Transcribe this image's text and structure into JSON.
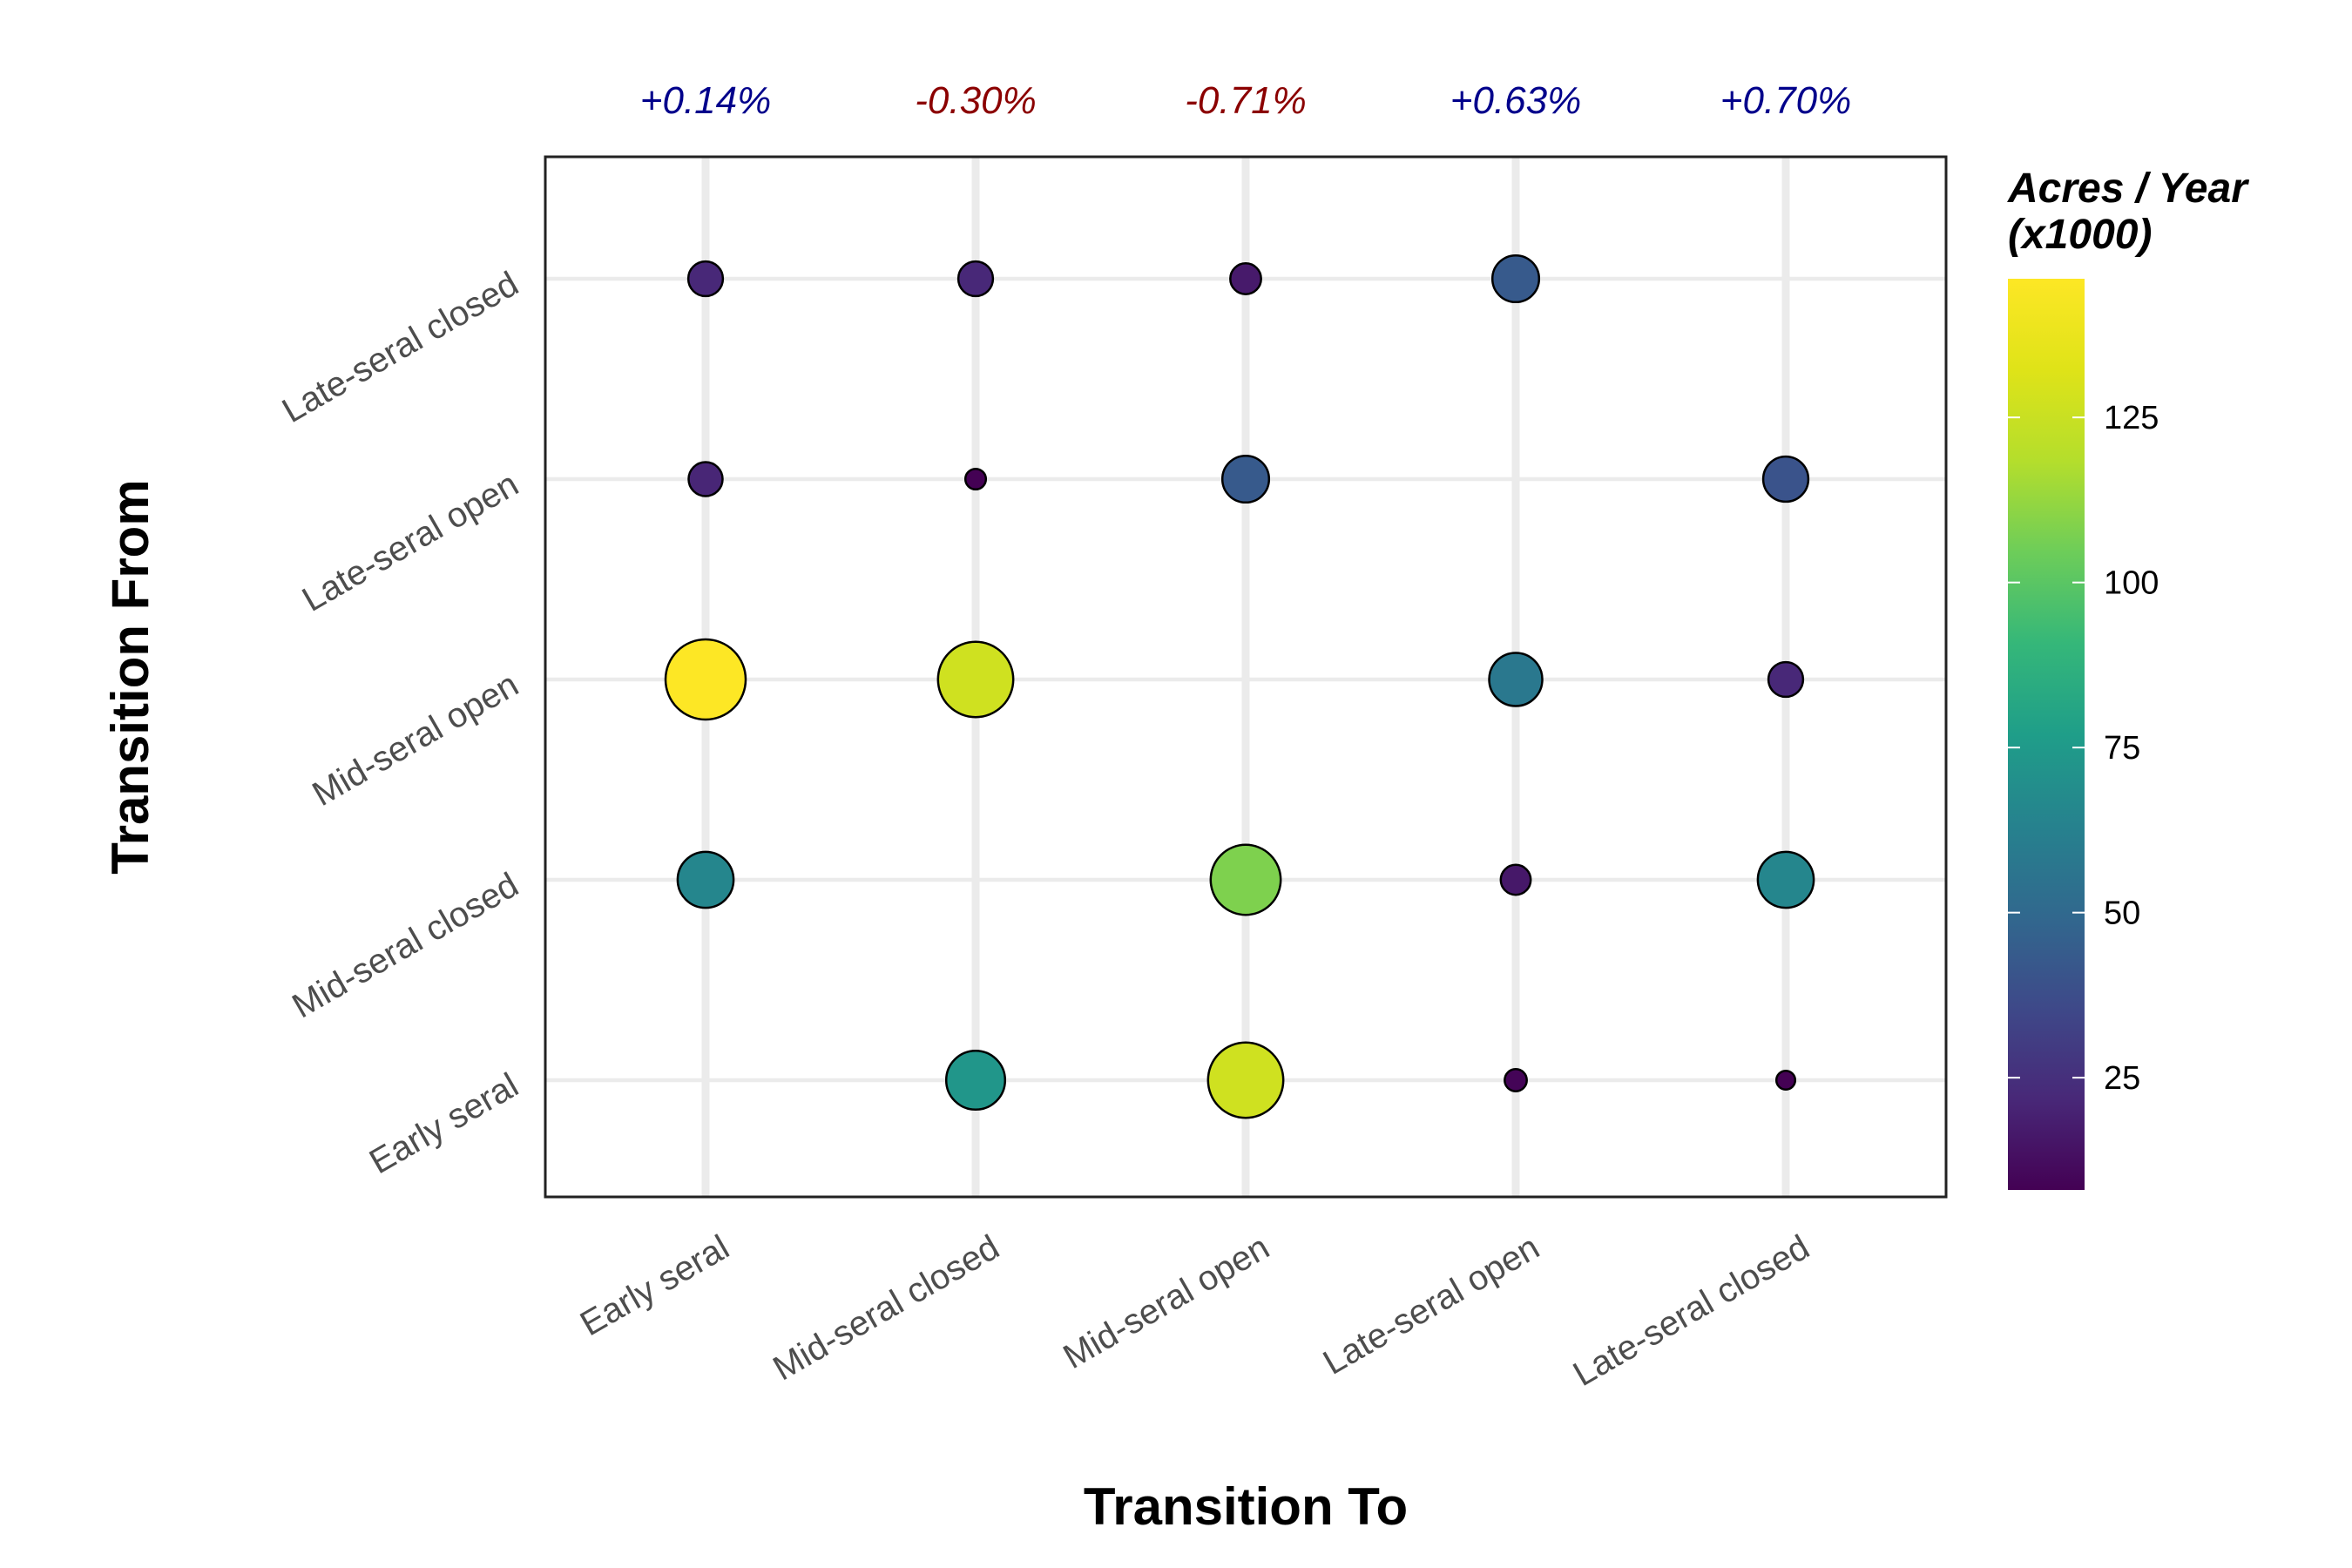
{
  "chart_data": {
    "type": "scatter",
    "xlabel": "Transition To",
    "ylabel": "Transition From",
    "x_categories": [
      "Early seral",
      "Mid-seral closed",
      "Mid-seral open",
      "Late-seral open",
      "Late-seral closed"
    ],
    "y_categories": [
      "Early seral",
      "Mid-seral closed",
      "Mid-seral open",
      "Late-seral open",
      "Late-seral closed"
    ],
    "column_changes": [
      "+0.14%",
      "-0.30%",
      "-0.71%",
      "+0.63%",
      "+0.70%"
    ],
    "column_change_colors": [
      "#00008b",
      "#8b0000",
      "#8b0000",
      "#00008b",
      "#00008b"
    ],
    "points": [
      {
        "from": "Late-seral closed",
        "to": "Early seral",
        "value": 22
      },
      {
        "from": "Late-seral closed",
        "to": "Mid-seral closed",
        "value": 22
      },
      {
        "from": "Late-seral closed",
        "to": "Mid-seral open",
        "value": 17
      },
      {
        "from": "Late-seral closed",
        "to": "Late-seral open",
        "value": 43
      },
      {
        "from": "Late-seral open",
        "to": "Early seral",
        "value": 21
      },
      {
        "from": "Late-seral open",
        "to": "Mid-seral closed",
        "value": 8
      },
      {
        "from": "Late-seral open",
        "to": "Mid-seral open",
        "value": 43
      },
      {
        "from": "Late-seral open",
        "to": "Late-seral closed",
        "value": 40
      },
      {
        "from": "Mid-seral open",
        "to": "Early seral",
        "value": 146
      },
      {
        "from": "Mid-seral open",
        "to": "Mid-seral closed",
        "value": 127
      },
      {
        "from": "Mid-seral open",
        "to": "Late-seral open",
        "value": 58
      },
      {
        "from": "Mid-seral open",
        "to": "Late-seral closed",
        "value": 22
      },
      {
        "from": "Mid-seral closed",
        "to": "Early seral",
        "value": 65
      },
      {
        "from": "Mid-seral closed",
        "to": "Mid-seral open",
        "value": 108
      },
      {
        "from": "Mid-seral closed",
        "to": "Late-seral open",
        "value": 16
      },
      {
        "from": "Mid-seral closed",
        "to": "Late-seral closed",
        "value": 65
      },
      {
        "from": "Early seral",
        "to": "Mid-seral closed",
        "value": 73
      },
      {
        "from": "Early seral",
        "to": "Mid-seral open",
        "value": 127
      },
      {
        "from": "Early seral",
        "to": "Late-seral open",
        "value": 9
      },
      {
        "from": "Early seral",
        "to": "Late-seral closed",
        "value": 7
      }
    ],
    "legend": {
      "title_line1": "Acres / Year",
      "title_line2": "(x1000)",
      "ticks": [
        25,
        50,
        75,
        100,
        125
      ],
      "range": [
        8,
        146
      ],
      "colormap": "viridis",
      "placement": "right"
    },
    "grid": true
  }
}
